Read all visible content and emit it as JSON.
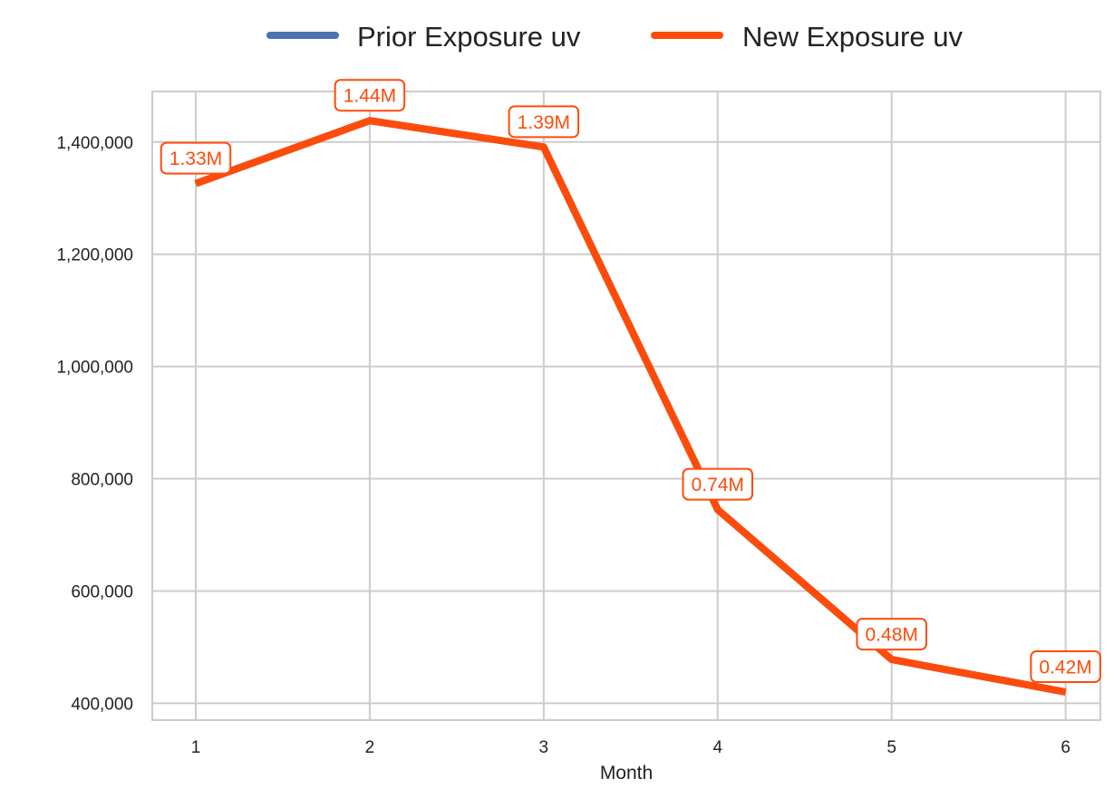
{
  "chart_data": {
    "type": "line",
    "xlabel": "Month",
    "ylabel": "",
    "x": [
      1,
      2,
      3,
      4,
      5,
      6
    ],
    "ylim": [
      370000,
      1490000
    ],
    "xlim": [
      0.75,
      6.2
    ],
    "yticks": [
      400000,
      600000,
      800000,
      1000000,
      1200000,
      1400000
    ],
    "ytick_labels": [
      "400,000",
      "600,000",
      "800,000",
      "1,000,000",
      "1,200,000",
      "1,400,000"
    ],
    "xtick_labels": [
      "1",
      "2",
      "3",
      "4",
      "5",
      "6"
    ],
    "grid": true,
    "legend_position": "top-center",
    "series": [
      {
        "name": "Prior Exposure uv",
        "color": "#4c72b0",
        "values": [
          1326000,
          1438000,
          1391000,
          745000,
          478000,
          420000
        ],
        "labels": []
      },
      {
        "name": "New Exposure uv",
        "color": "#ff4b0a",
        "values": [
          1326000,
          1438000,
          1391000,
          745000,
          478000,
          420000
        ],
        "labels": [
          "1.33M",
          "1.44M",
          "1.39M",
          "0.74M",
          "0.48M",
          "0.42M"
        ]
      }
    ]
  }
}
